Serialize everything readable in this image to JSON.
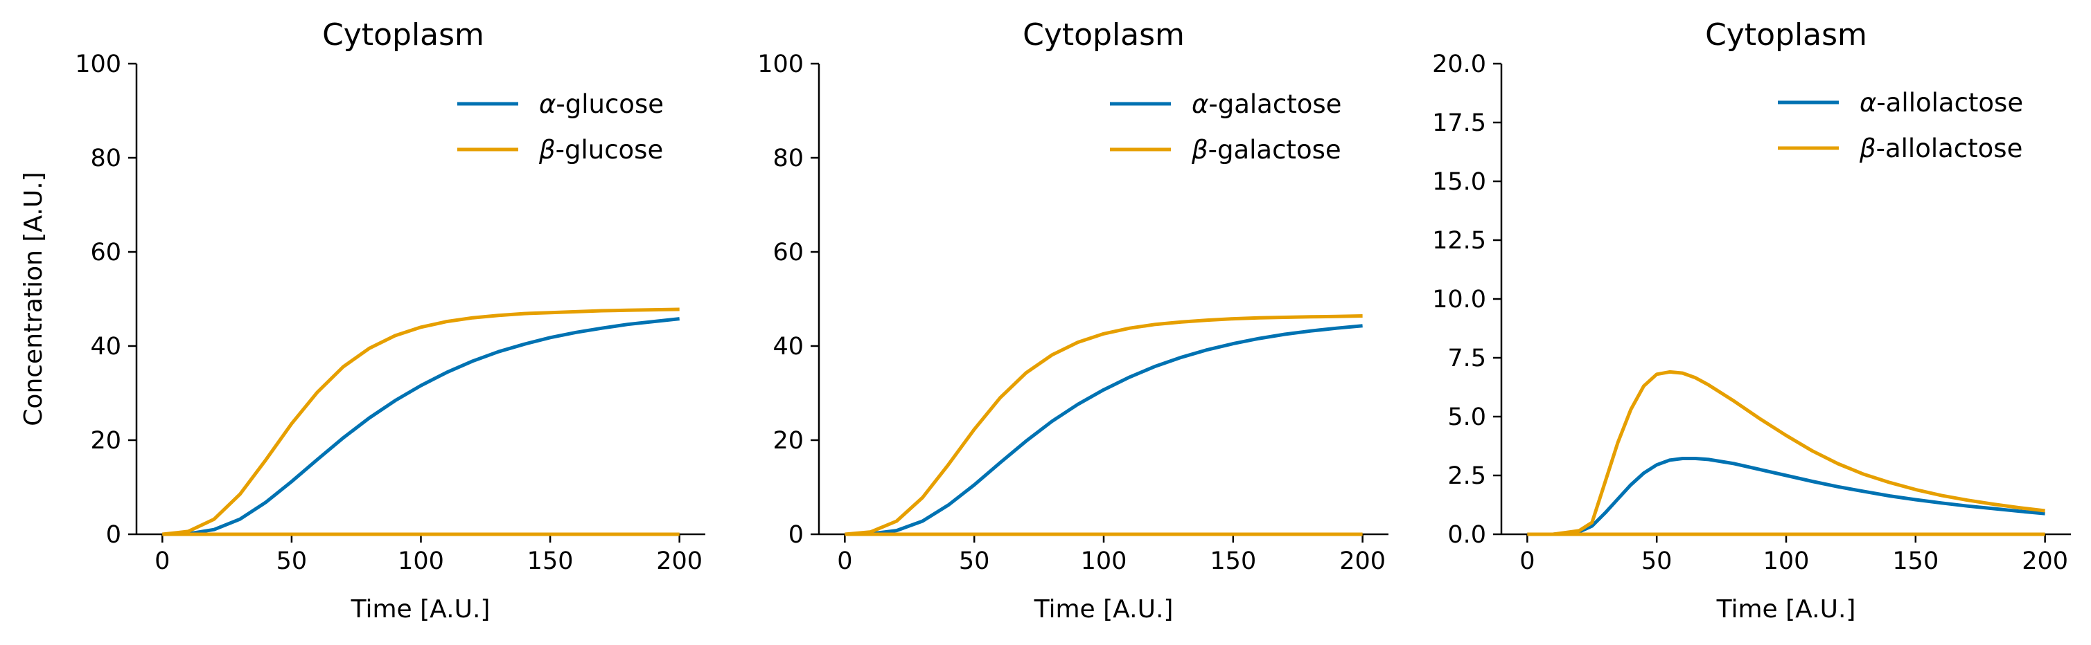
{
  "chart_data": [
    {
      "type": "line",
      "title": "Cytoplasm",
      "xlabel": "Time [A.U.]",
      "ylabel": "Concentration [A.U.]",
      "xlim": [
        -10,
        210
      ],
      "ylim": [
        0,
        100
      ],
      "xticks": [
        0,
        50,
        100,
        150,
        200
      ],
      "yticks": [
        0,
        20,
        40,
        60,
        80,
        100
      ],
      "ytick_labels": [
        "0",
        "20",
        "40",
        "60",
        "80",
        "100"
      ],
      "grid": false,
      "legend_position": "top-right",
      "x": [
        0,
        10,
        20,
        30,
        40,
        50,
        60,
        70,
        80,
        90,
        100,
        110,
        120,
        130,
        140,
        150,
        160,
        170,
        180,
        190,
        200
      ],
      "series": [
        {
          "name": "α-glucose",
          "color": "#0072B2",
          "values": [
            0,
            0.1,
            1.0,
            3.2,
            6.8,
            11.2,
            15.9,
            20.5,
            24.7,
            28.4,
            31.6,
            34.4,
            36.8,
            38.8,
            40.4,
            41.8,
            42.9,
            43.8,
            44.6,
            45.2,
            45.8
          ]
        },
        {
          "name": "β-glucose",
          "color": "#E69F00",
          "values": [
            0,
            0.6,
            3.2,
            8.5,
            15.8,
            23.5,
            30.2,
            35.6,
            39.5,
            42.2,
            44.0,
            45.2,
            46.0,
            46.5,
            46.9,
            47.1,
            47.3,
            47.5,
            47.6,
            47.7,
            47.8
          ]
        },
        {
          "name": "",
          "color": "#E69F00",
          "values": [
            0,
            0,
            0,
            0,
            0,
            0,
            0,
            0,
            0,
            0,
            0,
            0,
            0,
            0,
            0,
            0,
            0,
            0,
            0,
            0,
            0
          ]
        }
      ]
    },
    {
      "type": "line",
      "title": "Cytoplasm",
      "xlabel": "Time [A.U.]",
      "ylabel": "",
      "xlim": [
        -10,
        210
      ],
      "ylim": [
        0,
        100
      ],
      "xticks": [
        0,
        50,
        100,
        150,
        200
      ],
      "yticks": [
        0,
        20,
        40,
        60,
        80,
        100
      ],
      "ytick_labels": [
        "0",
        "20",
        "40",
        "60",
        "80",
        "100"
      ],
      "grid": false,
      "legend_position": "top-right",
      "x": [
        0,
        10,
        20,
        30,
        40,
        50,
        60,
        70,
        80,
        90,
        100,
        110,
        120,
        130,
        140,
        150,
        160,
        170,
        180,
        190,
        200
      ],
      "series": [
        {
          "name": "α-galactose",
          "color": "#0072B2",
          "values": [
            0,
            0.1,
            0.8,
            2.8,
            6.2,
            10.5,
            15.2,
            19.8,
            24.0,
            27.6,
            30.7,
            33.4,
            35.7,
            37.6,
            39.2,
            40.5,
            41.6,
            42.5,
            43.2,
            43.8,
            44.3
          ]
        },
        {
          "name": "β-galactose",
          "color": "#E69F00",
          "values": [
            0,
            0.5,
            2.8,
            7.8,
            14.8,
            22.3,
            29.0,
            34.3,
            38.1,
            40.8,
            42.6,
            43.8,
            44.6,
            45.1,
            45.5,
            45.8,
            46.0,
            46.1,
            46.2,
            46.3,
            46.4
          ]
        },
        {
          "name": "",
          "color": "#E69F00",
          "values": [
            0,
            0,
            0,
            0,
            0,
            0,
            0,
            0,
            0,
            0,
            0,
            0,
            0,
            0,
            0,
            0,
            0,
            0,
            0,
            0,
            0
          ]
        }
      ]
    },
    {
      "type": "line",
      "title": "Cytoplasm",
      "xlabel": "Time [A.U.]",
      "ylabel": "",
      "xlim": [
        -10,
        210
      ],
      "ylim": [
        0,
        20
      ],
      "xticks": [
        0,
        50,
        100,
        150,
        200
      ],
      "yticks": [
        0,
        2.5,
        5,
        7.5,
        10,
        12.5,
        15,
        17.5,
        20
      ],
      "ytick_labels": [
        "0.0",
        "2.5",
        "5.0",
        "7.5",
        "10.0",
        "12.5",
        "15.0",
        "17.5",
        "20.0"
      ],
      "grid": false,
      "legend_position": "top-right",
      "x": [
        0,
        10,
        20,
        25,
        30,
        35,
        40,
        45,
        50,
        55,
        60,
        65,
        70,
        80,
        90,
        100,
        110,
        120,
        130,
        140,
        150,
        160,
        170,
        180,
        190,
        200
      ],
      "series": [
        {
          "name": "α-allolactose",
          "color": "#0072B2",
          "values": [
            0,
            0,
            0.1,
            0.35,
            0.9,
            1.5,
            2.1,
            2.6,
            2.95,
            3.15,
            3.22,
            3.22,
            3.18,
            3.0,
            2.75,
            2.5,
            2.25,
            2.02,
            1.82,
            1.63,
            1.47,
            1.33,
            1.2,
            1.09,
            0.98,
            0.88
          ]
        },
        {
          "name": "β-allolactose",
          "color": "#E69F00",
          "values": [
            0,
            0,
            0.15,
            0.5,
            2.2,
            3.9,
            5.3,
            6.3,
            6.8,
            6.9,
            6.85,
            6.65,
            6.35,
            5.65,
            4.9,
            4.2,
            3.55,
            3.0,
            2.55,
            2.2,
            1.9,
            1.65,
            1.45,
            1.28,
            1.13,
            1.0
          ]
        },
        {
          "name": "",
          "color": "#E69F00",
          "values": [
            0,
            0,
            0,
            0,
            0,
            0,
            0,
            0,
            0,
            0,
            0,
            0,
            0,
            0,
            0,
            0,
            0,
            0,
            0,
            0,
            0,
            0,
            0,
            0,
            0,
            0
          ]
        }
      ]
    }
  ]
}
